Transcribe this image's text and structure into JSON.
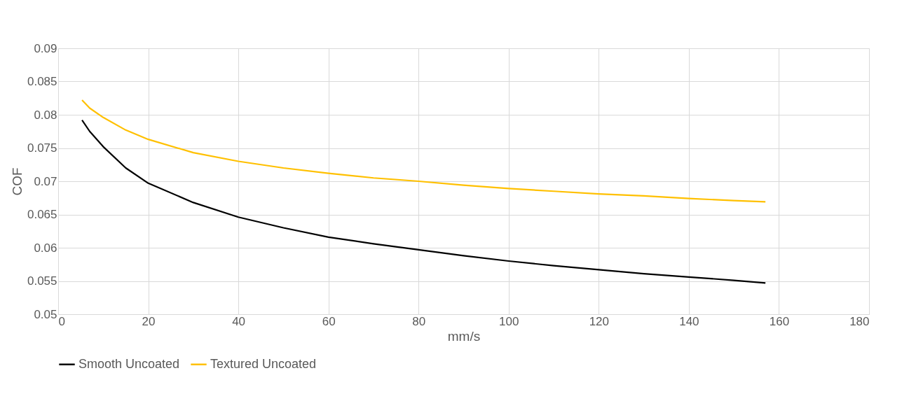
{
  "chart_data": {
    "type": "line",
    "xlabel": "mm/s",
    "ylabel": "COF",
    "x": [
      5.3,
      7,
      10,
      15,
      20,
      30,
      40,
      50,
      60,
      70,
      80,
      90,
      100,
      110,
      120,
      130,
      140,
      150,
      157
    ],
    "series": [
      {
        "name": "Smooth Uncoated",
        "color": "#000000",
        "values": [
          0.0792,
          0.0775,
          0.0752,
          0.072,
          0.0697,
          0.0668,
          0.0646,
          0.063,
          0.0616,
          0.0606,
          0.0597,
          0.0588,
          0.058,
          0.0573,
          0.0567,
          0.0561,
          0.0556,
          0.0551,
          0.0547
        ]
      },
      {
        "name": "Textured Uncoated",
        "color": "#ffc000",
        "values": [
          0.0822,
          0.081,
          0.0796,
          0.0777,
          0.0763,
          0.0743,
          0.073,
          0.072,
          0.0712,
          0.0705,
          0.07,
          0.0694,
          0.0689,
          0.0685,
          0.0681,
          0.0678,
          0.0674,
          0.0671,
          0.0669
        ]
      }
    ],
    "xlim": [
      0,
      180
    ],
    "xticks": [
      0,
      20,
      40,
      60,
      80,
      100,
      120,
      140,
      160,
      180
    ],
    "ylim": [
      0.05,
      0.09
    ],
    "yticks": [
      0.05,
      0.055,
      0.06,
      0.065,
      0.07,
      0.075,
      0.08,
      0.085,
      0.09
    ],
    "grid": true,
    "legend": "bottom",
    "marker": "none",
    "line_style": "solid"
  }
}
